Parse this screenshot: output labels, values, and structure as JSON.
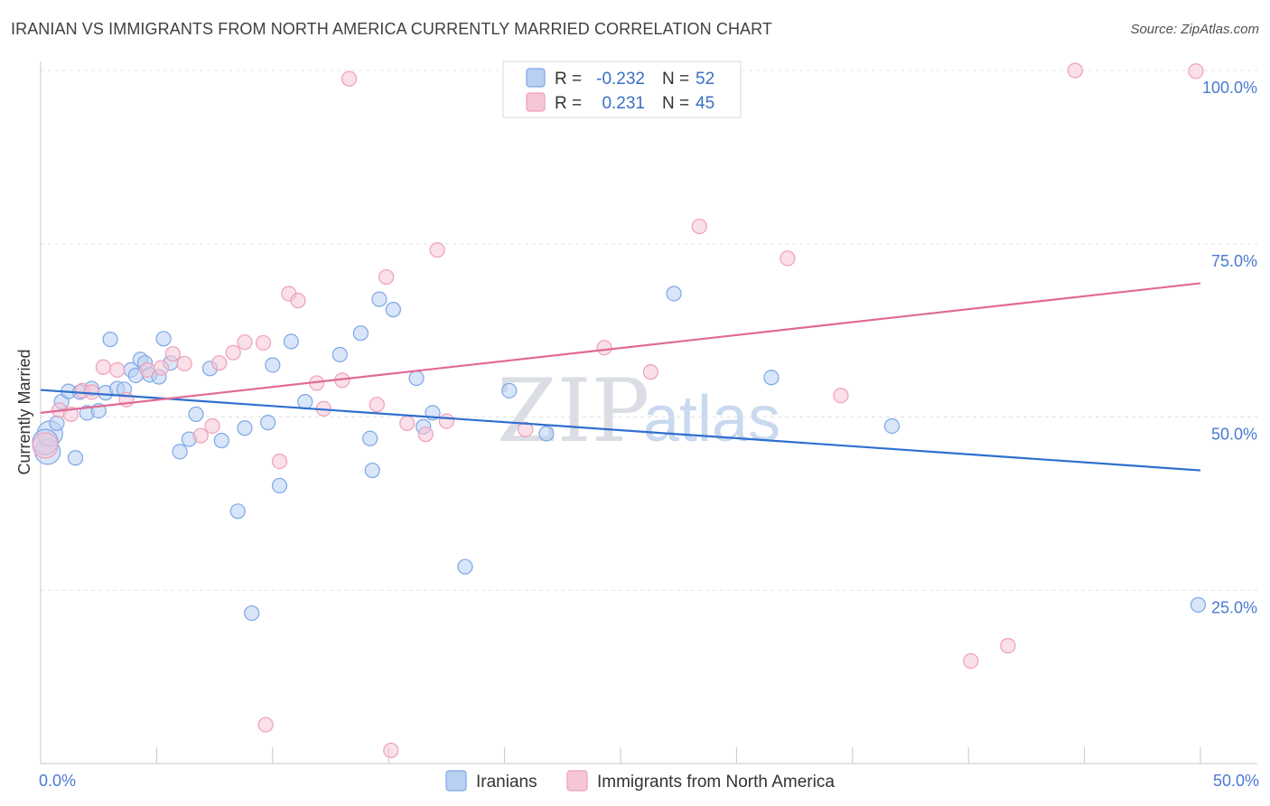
{
  "title": "IRANIAN VS IMMIGRANTS FROM NORTH AMERICA CURRENTLY MARRIED CORRELATION CHART",
  "source": "Source: ZipAtlas.com",
  "watermark": {
    "zip": "ZIP",
    "atlas": "atlas"
  },
  "stats": {
    "r_label": "R =",
    "n_label": "N =",
    "rows": [
      {
        "r": "-0.232",
        "n": "52"
      },
      {
        "r": "0.231",
        "n": "45"
      }
    ]
  },
  "chart_data": {
    "type": "scatter",
    "ylabel": "Currently Married",
    "xlim": [
      0,
      50
    ],
    "ylim": [
      0,
      100
    ],
    "x_tick_labels": [
      "0.0%",
      "50.0%"
    ],
    "y_tick_labels": [
      "25.0%",
      "50.0%",
      "75.0%",
      "100.0%"
    ],
    "y_ticks": [
      25,
      50,
      75,
      100
    ],
    "grid": true,
    "legend_position": "bottom",
    "series": [
      {
        "name": "Iranians",
        "color": "#7da7e8",
        "fill": "#b9d0f3",
        "trend": {
          "x": [
            0,
            50
          ],
          "y": [
            53.9,
            42.3
          ],
          "color": "#2f6fcf"
        },
        "points": [
          [
            0.3,
            45.0
          ],
          [
            0.4,
            47.6
          ],
          [
            0.7,
            49.1
          ],
          [
            0.9,
            52.2
          ],
          [
            1.2,
            53.7
          ],
          [
            1.5,
            44.1
          ],
          [
            1.7,
            53.6
          ],
          [
            2.0,
            50.6
          ],
          [
            2.2,
            54.1
          ],
          [
            2.5,
            50.9
          ],
          [
            2.8,
            53.5
          ],
          [
            3.0,
            61.2
          ],
          [
            3.3,
            54.1
          ],
          [
            3.6,
            54.0
          ],
          [
            3.9,
            56.8
          ],
          [
            4.1,
            56.0
          ],
          [
            4.3,
            58.3
          ],
          [
            4.5,
            57.8
          ],
          [
            4.7,
            56.1
          ],
          [
            5.1,
            55.8
          ],
          [
            5.3,
            61.3
          ],
          [
            5.6,
            57.8
          ],
          [
            6.0,
            45.0
          ],
          [
            6.4,
            46.8
          ],
          [
            6.7,
            50.4
          ],
          [
            7.3,
            57.0
          ],
          [
            7.8,
            46.6
          ],
          [
            8.5,
            36.4
          ],
          [
            8.8,
            48.4
          ],
          [
            9.1,
            21.7
          ],
          [
            9.8,
            49.2
          ],
          [
            10.0,
            57.5
          ],
          [
            10.3,
            40.1
          ],
          [
            10.8,
            60.9
          ],
          [
            11.4,
            52.2
          ],
          [
            12.9,
            59.0
          ],
          [
            13.8,
            62.1
          ],
          [
            14.2,
            46.9
          ],
          [
            14.3,
            42.3
          ],
          [
            14.6,
            67.0
          ],
          [
            15.2,
            65.5
          ],
          [
            16.2,
            55.6
          ],
          [
            16.5,
            48.6
          ],
          [
            16.9,
            50.6
          ],
          [
            18.3,
            28.4
          ],
          [
            20.2,
            53.8
          ],
          [
            21.8,
            47.6
          ],
          [
            27.3,
            67.8
          ],
          [
            31.5,
            55.7
          ],
          [
            36.7,
            48.7
          ],
          [
            49.9,
            22.9
          ],
          [
            0.2,
            46.4
          ]
        ]
      },
      {
        "name": "Immigrants from North America",
        "color": "#ef9fb8",
        "fill": "#f6c6d5",
        "trend": {
          "x": [
            0,
            50
          ],
          "y": [
            50.6,
            69.3
          ],
          "color": "#e06a93"
        },
        "points": [
          [
            0.2,
            45.9
          ],
          [
            0.8,
            51.0
          ],
          [
            1.3,
            50.4
          ],
          [
            1.8,
            53.8
          ],
          [
            2.2,
            53.6
          ],
          [
            2.7,
            57.2
          ],
          [
            3.3,
            56.8
          ],
          [
            3.7,
            52.5
          ],
          [
            4.6,
            56.8
          ],
          [
            5.2,
            57.1
          ],
          [
            5.7,
            59.1
          ],
          [
            6.2,
            57.7
          ],
          [
            6.9,
            47.3
          ],
          [
            7.4,
            48.7
          ],
          [
            7.7,
            57.8
          ],
          [
            8.3,
            59.3
          ],
          [
            8.8,
            60.8
          ],
          [
            9.6,
            60.7
          ],
          [
            9.7,
            5.6
          ],
          [
            10.3,
            43.6
          ],
          [
            10.7,
            67.8
          ],
          [
            11.1,
            66.8
          ],
          [
            11.9,
            54.9
          ],
          [
            12.2,
            51.2
          ],
          [
            13.0,
            55.3
          ],
          [
            13.3,
            98.8
          ],
          [
            14.5,
            51.8
          ],
          [
            14.9,
            70.2
          ],
          [
            15.1,
            1.9
          ],
          [
            15.8,
            49.1
          ],
          [
            16.6,
            47.5
          ],
          [
            17.1,
            74.1
          ],
          [
            17.5,
            49.4
          ],
          [
            20.9,
            48.2
          ],
          [
            24.3,
            60.0
          ],
          [
            26.0,
            99.5
          ],
          [
            26.3,
            56.5
          ],
          [
            28.4,
            77.5
          ],
          [
            29.5,
            99.9
          ],
          [
            32.2,
            72.9
          ],
          [
            34.5,
            53.1
          ],
          [
            40.1,
            14.8
          ],
          [
            41.7,
            17.0
          ],
          [
            44.6,
            100.0
          ],
          [
            49.8,
            99.9
          ]
        ]
      }
    ]
  }
}
